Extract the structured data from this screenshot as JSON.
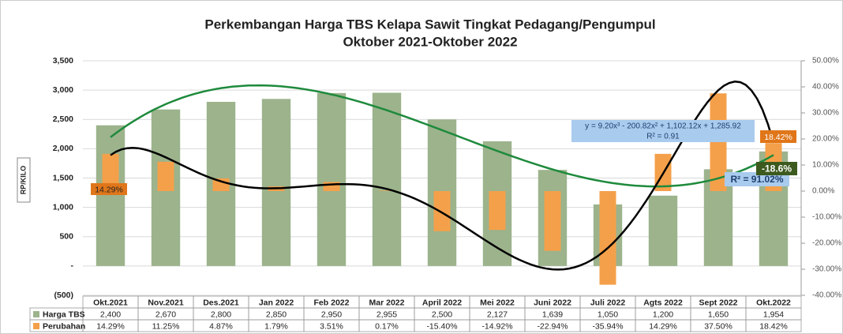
{
  "chart_data": {
    "type": "bar",
    "title": "Perkembangan Harga TBS Kelapa Sawit  Tingkat Pedagang/Pengumpul",
    "subtitle": "Oktober  2021-Oktober 2022",
    "y_label": "RP/KILO",
    "categories": [
      "Okt.2021",
      "Nov.2021",
      "Des.2021",
      "Jan 2022",
      "Feb 2022",
      "Mar 2022",
      "April 2022",
      "Mei 2022",
      "Juni 2022",
      "Juli 2022",
      "Agts 2022",
      "Sept 2022",
      "Okt.2022"
    ],
    "series": [
      {
        "name": "Harga TBS",
        "color": "#9cb38c",
        "values": [
          2400,
          2670,
          2800,
          2850,
          2950,
          2955,
          2500,
          2127,
          1639,
          1050,
          1200,
          1650,
          1954
        ],
        "value_labels": [
          "2,400",
          "2,670",
          "2,800",
          "2,850",
          "2,950",
          "2,955",
          "2,500",
          "2,127",
          "1,639",
          "1,050",
          "1,200",
          "1,650",
          "1,954"
        ]
      },
      {
        "name": "Perubahan",
        "color": "#f4a04a",
        "axis": "y2",
        "values": [
          14.29,
          11.25,
          4.87,
          1.79,
          3.51,
          0.17,
          -15.4,
          -14.92,
          -22.94,
          -35.94,
          14.29,
          37.5,
          18.42
        ],
        "value_labels": [
          "14.29%",
          "11.25%",
          "4.87%",
          "1.79%",
          "3.51%",
          "0.17%",
          "-15.40%",
          "-14.92%",
          "-22.94%",
          "-35.94%",
          "14.29%",
          "37.50%",
          "18.42%"
        ]
      }
    ],
    "ylim": [
      -500,
      3500
    ],
    "yticks": [
      {
        "value": -500,
        "label": "(500)"
      },
      {
        "value": 0,
        "label": "-"
      },
      500,
      {
        "value": 1000,
        "label": "1,000"
      },
      {
        "value": 1500,
        "label": "1,500"
      },
      {
        "value": 2000,
        "label": "2,000"
      },
      {
        "value": 2500,
        "label": "2,500"
      },
      {
        "value": 3000,
        "label": "3,000"
      },
      {
        "value": 3500,
        "label": "3,500"
      }
    ],
    "y2lim": [
      -40,
      50
    ],
    "y2ticks": [
      {
        "value": -40,
        "label": "-40.00%"
      },
      {
        "value": -30,
        "label": "-30.00%"
      },
      {
        "value": -20,
        "label": "-20.00%"
      },
      {
        "value": -10,
        "label": "-10.00%"
      },
      {
        "value": 0,
        "label": "0.00%"
      },
      {
        "value": 10,
        "label": "10.00%"
      },
      {
        "value": 20,
        "label": "20.00%"
      },
      {
        "value": 30,
        "label": "30.00%"
      },
      {
        "value": 40,
        "label": "40.00%"
      },
      {
        "value": 50,
        "label": "50.00%"
      }
    ],
    "grid": true,
    "annotations": [
      "y = 9.20x³ - 200.82x² + 1,102.12x + 1,285.92",
      "R² = 0.91",
      "R² = 91.02%",
      "-18.6%"
    ],
    "trendlines": [
      {
        "color": "#1e8a3c",
        "degree": 3
      },
      {
        "color": "#000000",
        "degree": 6,
        "axis": "y2"
      }
    ]
  }
}
